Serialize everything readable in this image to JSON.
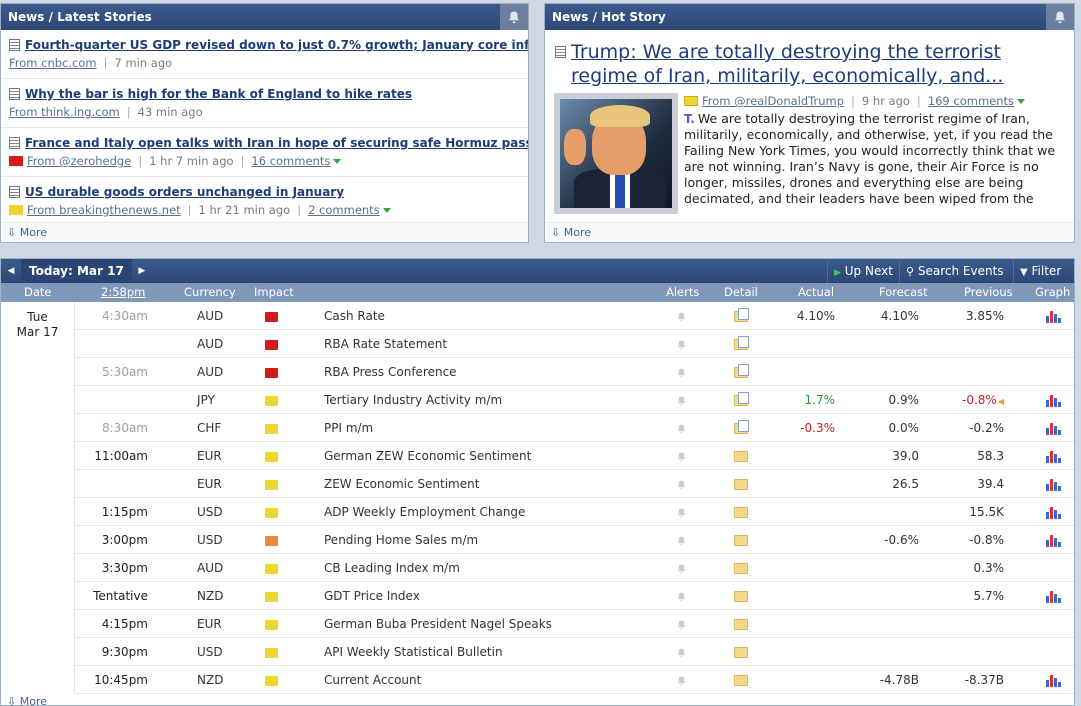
{
  "latest": {
    "title": "News / Latest Stories",
    "stories": [
      {
        "title": "Fourth-quarter US GDP revised down to just 0.7% growth; January core inflati",
        "source": "From cnbc.com",
        "time": "7 min ago",
        "comments": ""
      },
      {
        "title": "Why the bar is high for the Bank of England to hike rates",
        "source": "From think.ing.com",
        "time": "43 min ago",
        "comments": ""
      },
      {
        "title": "France and Italy open talks with Iran in hope of securing safe Hormuz passage",
        "source": "From @zerohedge",
        "time": "1 hr 7 min ago",
        "comments": "16 comments"
      },
      {
        "title": "US durable goods orders unchanged in January",
        "source": "From breakingthenews.net",
        "time": "1 hr 21 min ago",
        "comments": "2 comments"
      }
    ],
    "more": "More"
  },
  "hot": {
    "title": "News / Hot Story",
    "headline": "Trump: We are totally destroying the terrorist regime of Iran, militarily, economically, and...",
    "source": "From @realDonaldTrump",
    "time": "9 hr ago",
    "comments": "169 comments",
    "body": "We are totally destroying the terrorist regime of Iran, militarily, economically, and otherwise, yet, if you read the Failing New York Times, you would incorrectly think that we are not winning. Iran’s Navy is gone, their Air Force is no longer, missiles, drones and everything else are being decimated, and their leaders have been wiped from the face",
    "more": "More"
  },
  "calendar": {
    "today": "Today: Mar 17",
    "up_next": "Up Next",
    "search": "Search Events",
    "filter": "Filter",
    "headers": {
      "date": "Date",
      "time": "2:58pm",
      "currency": "Currency",
      "impact": "Impact",
      "alerts": "Alerts",
      "detail": "Detail",
      "actual": "Actual",
      "forecast": "Forecast",
      "previous": "Previous",
      "graph": "Graph"
    },
    "day": {
      "weekday": "Tue",
      "date": "Mar 17"
    },
    "events": [
      {
        "time": "4:30am",
        "time_past": true,
        "currency": "AUD",
        "impact": "red",
        "event": "Cash Rate",
        "detail": "doc",
        "actual": "4.10%",
        "actual_color": "",
        "forecast": "4.10%",
        "previous": "3.85%",
        "previous_color": "",
        "graph": true
      },
      {
        "time": "",
        "time_past": true,
        "currency": "AUD",
        "impact": "red",
        "event": "RBA Rate Statement",
        "detail": "doc",
        "actual": "",
        "actual_color": "",
        "forecast": "",
        "previous": "",
        "previous_color": "",
        "graph": false
      },
      {
        "time": "5:30am",
        "time_past": true,
        "currency": "AUD",
        "impact": "red",
        "event": "RBA Press Conference",
        "detail": "doc",
        "actual": "",
        "actual_color": "",
        "forecast": "",
        "previous": "",
        "previous_color": "",
        "graph": false
      },
      {
        "time": "",
        "time_past": true,
        "currency": "JPY",
        "impact": "yellow",
        "event": "Tertiary Industry Activity m/m",
        "detail": "doc",
        "actual": "1.7%",
        "actual_color": "green",
        "forecast": "0.9%",
        "previous": "-0.8%",
        "previous_color": "red",
        "graph": true
      },
      {
        "time": "8:30am",
        "time_past": true,
        "currency": "CHF",
        "impact": "yellow",
        "event": "PPI m/m",
        "detail": "doc",
        "actual": "-0.3%",
        "actual_color": "red",
        "forecast": "0.0%",
        "previous": "-0.2%",
        "previous_color": "",
        "graph": true
      },
      {
        "time": "11:00am",
        "time_past": false,
        "currency": "EUR",
        "impact": "yellow",
        "event": "German ZEW Economic Sentiment",
        "detail": "folder",
        "actual": "",
        "actual_color": "",
        "forecast": "39.0",
        "previous": "58.3",
        "previous_color": "",
        "graph": true
      },
      {
        "time": "",
        "time_past": false,
        "currency": "EUR",
        "impact": "yellow",
        "event": "ZEW Economic Sentiment",
        "detail": "folder",
        "actual": "",
        "actual_color": "",
        "forecast": "26.5",
        "previous": "39.4",
        "previous_color": "",
        "graph": true
      },
      {
        "time": "1:15pm",
        "time_past": false,
        "currency": "USD",
        "impact": "yellow",
        "event": "ADP Weekly Employment Change",
        "detail": "folder",
        "actual": "",
        "actual_color": "",
        "forecast": "",
        "previous": "15.5K",
        "previous_color": "",
        "graph": true
      },
      {
        "time": "3:00pm",
        "time_past": false,
        "currency": "USD",
        "impact": "orange",
        "event": "Pending Home Sales m/m",
        "detail": "folder",
        "actual": "",
        "actual_color": "",
        "forecast": "-0.6%",
        "previous": "-0.8%",
        "previous_color": "",
        "graph": true
      },
      {
        "time": "3:30pm",
        "time_past": false,
        "currency": "AUD",
        "impact": "yellow",
        "event": "CB Leading Index m/m",
        "detail": "folder",
        "actual": "",
        "actual_color": "",
        "forecast": "",
        "previous": "0.3%",
        "previous_color": "",
        "graph": false
      },
      {
        "time": "Tentative",
        "time_past": false,
        "currency": "NZD",
        "impact": "yellow",
        "event": "GDT Price Index",
        "detail": "folder",
        "actual": "",
        "actual_color": "",
        "forecast": "",
        "previous": "5.7%",
        "previous_color": "",
        "graph": true
      },
      {
        "time": "4:15pm",
        "time_past": false,
        "currency": "EUR",
        "impact": "yellow",
        "event": "German Buba President Nagel Speaks",
        "detail": "folder",
        "actual": "",
        "actual_color": "",
        "forecast": "",
        "previous": "",
        "previous_color": "",
        "graph": false
      },
      {
        "time": "9:30pm",
        "time_past": false,
        "currency": "USD",
        "impact": "yellow",
        "event": "API Weekly Statistical Bulletin",
        "detail": "folder",
        "actual": "",
        "actual_color": "",
        "forecast": "",
        "previous": "",
        "previous_color": "",
        "graph": false
      },
      {
        "time": "10:45pm",
        "time_past": false,
        "currency": "NZD",
        "impact": "yellow",
        "event": "Current Account",
        "detail": "folder",
        "actual": "",
        "actual_color": "",
        "forecast": "-4.78B",
        "previous": "-8.37B",
        "previous_color": "",
        "graph": true
      }
    ],
    "more": "More"
  },
  "colors": {
    "impact_red": "#d41b1b",
    "impact_orange": "#ee8a3c",
    "impact_yellow": "#f0d530",
    "header_blue": "#2c4877"
  }
}
